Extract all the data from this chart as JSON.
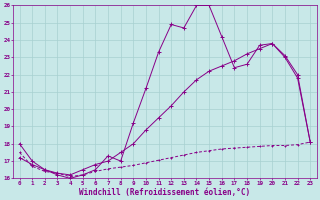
{
  "xlabel": "Windchill (Refroidissement éolien,°C)",
  "xlim": [
    -0.5,
    23.5
  ],
  "ylim": [
    16,
    26
  ],
  "xticks": [
    0,
    1,
    2,
    3,
    4,
    5,
    6,
    7,
    8,
    9,
    10,
    11,
    12,
    13,
    14,
    15,
    16,
    17,
    18,
    19,
    20,
    21,
    22,
    23
  ],
  "yticks": [
    16,
    17,
    18,
    19,
    20,
    21,
    22,
    23,
    24,
    25,
    26
  ],
  "bg_color": "#c8e8e8",
  "grid_color": "#a8d0d0",
  "line_color": "#880088",
  "line1_x": [
    0,
    1,
    2,
    3,
    4,
    5,
    6,
    7,
    8,
    9,
    10,
    11,
    12,
    13,
    14,
    15,
    16,
    17,
    18,
    19,
    20,
    21,
    22,
    23
  ],
  "line1_y": [
    18.0,
    17.0,
    16.5,
    16.2,
    16.0,
    16.2,
    16.5,
    17.3,
    17.0,
    19.2,
    21.2,
    23.3,
    24.9,
    24.7,
    26.0,
    26.0,
    24.2,
    22.4,
    22.6,
    23.7,
    23.8,
    23.0,
    21.8,
    18.1
  ],
  "line2_x": [
    0,
    1,
    2,
    3,
    4,
    5,
    6,
    7,
    8,
    9,
    10,
    11,
    12,
    13,
    14,
    15,
    16,
    17,
    18,
    19,
    20,
    21,
    22,
    23
  ],
  "line2_y": [
    17.2,
    16.8,
    16.5,
    16.3,
    16.2,
    16.5,
    16.8,
    17.0,
    17.5,
    18.0,
    18.8,
    19.5,
    20.2,
    21.0,
    21.7,
    22.2,
    22.5,
    22.8,
    23.2,
    23.5,
    23.8,
    23.1,
    22.0,
    18.1
  ],
  "line3_x": [
    0,
    1,
    2,
    3,
    4,
    5,
    6,
    7,
    8,
    9,
    10,
    11,
    12,
    13,
    14,
    15,
    16,
    17,
    18,
    19,
    20,
    21,
    22,
    23
  ],
  "line3_y": [
    17.5,
    16.7,
    16.4,
    16.3,
    16.1,
    16.2,
    16.4,
    16.55,
    16.65,
    16.75,
    16.9,
    17.05,
    17.2,
    17.35,
    17.5,
    17.6,
    17.7,
    17.75,
    17.8,
    17.85,
    17.9,
    17.9,
    17.95,
    18.1
  ]
}
